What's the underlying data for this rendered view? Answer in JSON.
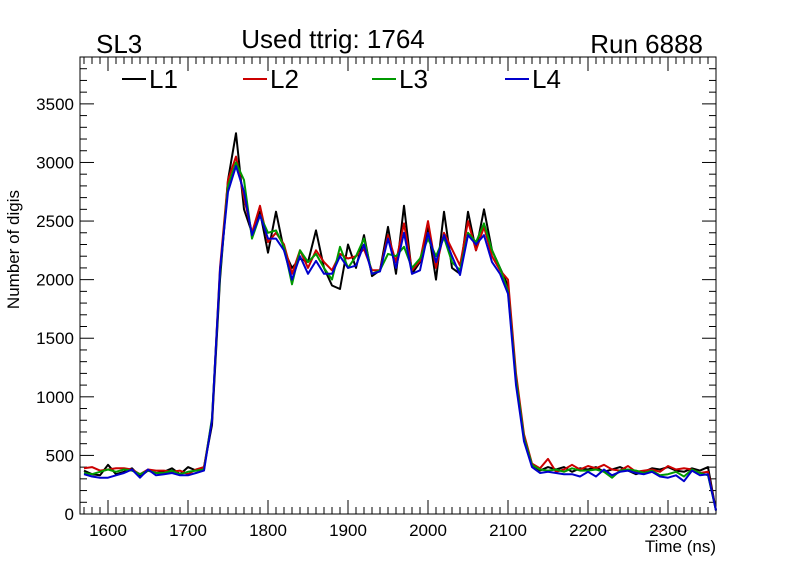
{
  "chart_data": {
    "type": "line",
    "corner_left_label": "SL3",
    "title": "Used ttrig: 1764",
    "corner_right_label": "Run 6888",
    "xlabel": "Time (ns)",
    "ylabel": "Number of digis",
    "xlim": [
      1565,
      2360
    ],
    "ylim": [
      0,
      3900
    ],
    "x_ticks": [
      1600,
      1700,
      1800,
      1900,
      2000,
      2100,
      2200,
      2300
    ],
    "y_ticks": [
      0,
      500,
      1000,
      1500,
      2000,
      2500,
      3000,
      3500
    ],
    "legend_position": "top",
    "x": [
      1570,
      1580,
      1590,
      1600,
      1610,
      1620,
      1630,
      1640,
      1650,
      1660,
      1670,
      1680,
      1690,
      1700,
      1710,
      1720,
      1730,
      1740,
      1750,
      1760,
      1770,
      1780,
      1790,
      1800,
      1810,
      1820,
      1830,
      1840,
      1850,
      1860,
      1870,
      1880,
      1890,
      1900,
      1910,
      1920,
      1930,
      1940,
      1950,
      1960,
      1970,
      1980,
      1990,
      2000,
      2010,
      2020,
      2030,
      2040,
      2050,
      2060,
      2070,
      2080,
      2090,
      2100,
      2110,
      2120,
      2130,
      2140,
      2150,
      2160,
      2170,
      2180,
      2190,
      2200,
      2210,
      2220,
      2230,
      2240,
      2250,
      2260,
      2270,
      2280,
      2290,
      2300,
      2310,
      2320,
      2330,
      2340,
      2350,
      2360
    ],
    "series": [
      {
        "name": "L1",
        "color": "#000000",
        "values": [
          370,
          340,
          330,
          420,
          340,
          360,
          390,
          320,
          370,
          350,
          360,
          390,
          340,
          400,
          370,
          400,
          760,
          2000,
          2850,
          3250,
          2600,
          2400,
          2580,
          2230,
          2580,
          2250,
          2100,
          2180,
          2150,
          2420,
          2100,
          1950,
          1920,
          2300,
          2100,
          2380,
          2030,
          2080,
          2450,
          2050,
          2630,
          2050,
          2150,
          2440,
          2000,
          2580,
          2100,
          2050,
          2580,
          2250,
          2600,
          2250,
          2100,
          1950,
          1150,
          650,
          420,
          370,
          400,
          380,
          400,
          360,
          390,
          380,
          400,
          360,
          380,
          400,
          370,
          340,
          360,
          390,
          380,
          400,
          370,
          360,
          390,
          370,
          400,
          30
        ]
      },
      {
        "name": "L2",
        "color": "#cc0000",
        "values": [
          390,
          400,
          370,
          380,
          390,
          390,
          380,
          340,
          380,
          370,
          370,
          360,
          370,
          340,
          380,
          400,
          800,
          2100,
          2850,
          3050,
          2700,
          2400,
          2630,
          2320,
          2400,
          2300,
          2050,
          2250,
          2100,
          2250,
          2150,
          2080,
          2220,
          2180,
          2200,
          2260,
          2080,
          2080,
          2380,
          2150,
          2480,
          2080,
          2160,
          2500,
          2100,
          2400,
          2260,
          2120,
          2500,
          2250,
          2450,
          2200,
          2080,
          2000,
          1200,
          680,
          430,
          390,
          470,
          360,
          380,
          420,
          380,
          410,
          390,
          420,
          380,
          370,
          410,
          360,
          370,
          380,
          360,
          410,
          380,
          390,
          380,
          350,
          360,
          30
        ]
      },
      {
        "name": "L3",
        "color": "#009900",
        "values": [
          350,
          340,
          360,
          380,
          360,
          380,
          370,
          340,
          370,
          350,
          350,
          370,
          340,
          360,
          370,
          380,
          820,
          2050,
          2800,
          3000,
          2850,
          2350,
          2550,
          2400,
          2420,
          2280,
          1960,
          2250,
          2150,
          2220,
          2100,
          2000,
          2280,
          2100,
          2200,
          2350,
          2050,
          2080,
          2220,
          2200,
          2280,
          2100,
          2180,
          2350,
          2200,
          2360,
          2150,
          2080,
          2400,
          2320,
          2480,
          2250,
          2100,
          1900,
          1150,
          650,
          420,
          380,
          370,
          380,
          360,
          390,
          370,
          370,
          380,
          360,
          310,
          370,
          380,
          370,
          350,
          370,
          330,
          340,
          360,
          320,
          380,
          350,
          330,
          30
        ]
      },
      {
        "name": "L4",
        "color": "#0000cc",
        "values": [
          340,
          320,
          310,
          310,
          330,
          350,
          380,
          310,
          380,
          330,
          340,
          350,
          330,
          330,
          350,
          370,
          800,
          2080,
          2750,
          2970,
          2750,
          2380,
          2550,
          2350,
          2350,
          2250,
          2000,
          2200,
          2050,
          2160,
          2050,
          2050,
          2200,
          2100,
          2120,
          2300,
          2050,
          2070,
          2350,
          2100,
          2400,
          2050,
          2080,
          2400,
          2150,
          2380,
          2200,
          2040,
          2380,
          2300,
          2380,
          2150,
          2050,
          1880,
          1100,
          620,
          400,
          350,
          360,
          350,
          340,
          340,
          320,
          360,
          320,
          380,
          330,
          360,
          370,
          350,
          340,
          360,
          320,
          310,
          330,
          280,
          370,
          330,
          340,
          30
        ]
      }
    ]
  }
}
